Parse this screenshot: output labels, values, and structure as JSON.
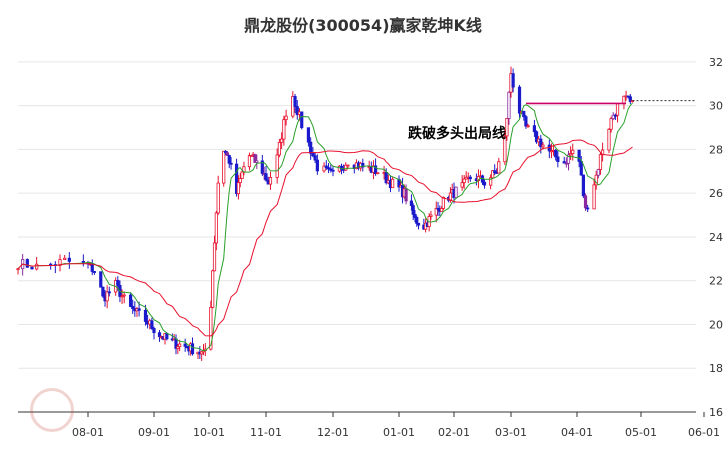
{
  "chart_data": {
    "type": "candlestick",
    "title": "鼎龙股份(300054)赢家乾坤K线",
    "annotation": "跌破多头出局线",
    "x_ticks": [
      "08-01",
      "09-01",
      "10-01",
      "11-01",
      "12-01",
      "01-01",
      "02-01",
      "03-01",
      "04-01",
      "05-01",
      "06-01"
    ],
    "y_ticks": [
      16,
      18,
      20,
      22,
      24,
      26,
      28,
      30,
      32
    ],
    "ylim": [
      16,
      33
    ],
    "signal_line_value": 30.1,
    "colors": {
      "up": "#e8112d",
      "down": "#1a1acc",
      "neutral": "#8b2a9e",
      "ma_short": "#2aa02a",
      "ma_long": "#e8112d",
      "signal_line": "#cc0066"
    },
    "price_path": [
      [
        "07-17",
        22.8
      ],
      [
        "07-22",
        22.6
      ],
      [
        "07-27",
        22.9
      ],
      [
        "08-01",
        22.7
      ],
      [
        "08-05",
        22.4
      ],
      [
        "08-08",
        21.2
      ],
      [
        "08-14",
        21.8
      ],
      [
        "08-20",
        20.8
      ],
      [
        "08-27",
        20.3
      ],
      [
        "09-03",
        19.6
      ],
      [
        "09-10",
        19.2
      ],
      [
        "09-18",
        19.0
      ],
      [
        "09-25",
        18.8
      ],
      [
        "09-28",
        18.6
      ],
      [
        "10-01",
        19.4
      ],
      [
        "10-03",
        22.5
      ],
      [
        "10-06",
        26.5
      ],
      [
        "10-09",
        28.0
      ],
      [
        "10-12",
        27.5
      ],
      [
        "10-16",
        26.0
      ],
      [
        "10-22",
        27.8
      ],
      [
        "10-29",
        27.2
      ],
      [
        "11-02",
        26.5
      ],
      [
        "11-06",
        27.6
      ],
      [
        "11-12",
        30.8
      ],
      [
        "11-18",
        28.8
      ],
      [
        "11-24",
        27.2
      ],
      [
        "12-01",
        26.8
      ],
      [
        "12-08",
        27.5
      ],
      [
        "12-15",
        27.2
      ],
      [
        "12-22",
        27.0
      ],
      [
        "12-28",
        26.5
      ],
      [
        "01-04",
        26.0
      ],
      [
        "01-10",
        24.8
      ],
      [
        "01-15",
        24.5
      ],
      [
        "01-20",
        25.0
      ],
      [
        "01-28",
        25.8
      ],
      [
        "02-04",
        26.2
      ],
      [
        "02-10",
        26.8
      ],
      [
        "02-16",
        26.5
      ],
      [
        "02-22",
        27.0
      ],
      [
        "02-26",
        28.5
      ],
      [
        "03-01",
        31.5
      ],
      [
        "03-04",
        30.0
      ],
      [
        "03-08",
        29.0
      ],
      [
        "03-14",
        28.4
      ],
      [
        "03-20",
        27.8
      ],
      [
        "03-26",
        27.4
      ],
      [
        "04-01",
        28.2
      ],
      [
        "04-05",
        25.2
      ],
      [
        "04-10",
        26.8
      ],
      [
        "04-14",
        28.5
      ],
      [
        "04-18",
        29.6
      ],
      [
        "04-22",
        30.3
      ],
      [
        "04-25",
        30.2
      ],
      [
        "04-28",
        29.9
      ]
    ]
  }
}
